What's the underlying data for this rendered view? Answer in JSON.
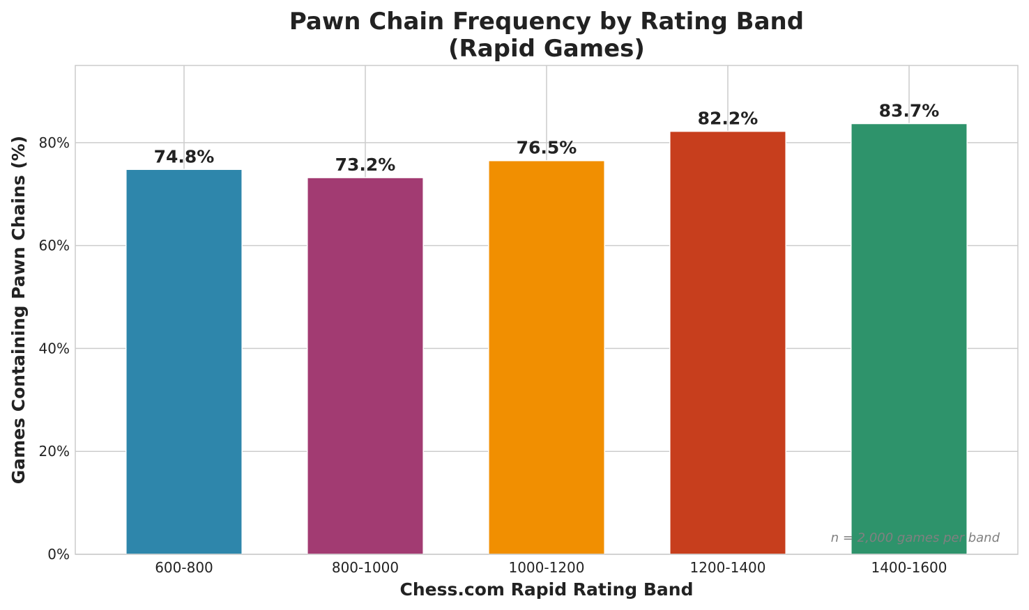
{
  "chart_data": {
    "type": "bar",
    "title": "Pawn Chain Frequency by Rating Band\n(Rapid Games)",
    "title_lines": [
      "Pawn Chain Frequency by Rating Band",
      "(Rapid Games)"
    ],
    "xlabel": "Chess.com Rapid Rating Band",
    "ylabel": "Games Containing Pawn Chains (%)",
    "categories": [
      "600-800",
      "800-1000",
      "1000-1200",
      "1200-1400",
      "1400-1600"
    ],
    "values": [
      74.8,
      73.2,
      76.5,
      82.2,
      83.7
    ],
    "value_labels": [
      "74.8%",
      "73.2%",
      "76.5%",
      "82.2%",
      "83.7%"
    ],
    "colors": [
      "#2e86ab",
      "#a23b72",
      "#f18f01",
      "#c73e1d",
      "#2e936b"
    ],
    "ylim": [
      0,
      95
    ],
    "yticks": [
      0,
      20,
      40,
      60,
      80
    ],
    "ytick_labels": [
      "0%",
      "20%",
      "40%",
      "60%",
      "80%"
    ],
    "grid": true,
    "annotation": "n = 2,000 games per band"
  }
}
